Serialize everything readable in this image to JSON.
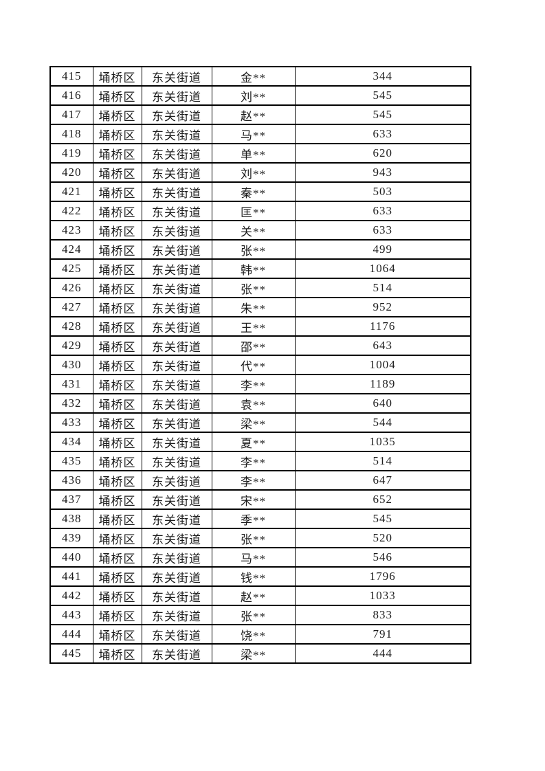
{
  "colors": {
    "background": "#ffffff",
    "border": "#000000",
    "text": "#1c1c1c"
  },
  "table": {
    "rows": [
      {
        "index": "415",
        "district": "埇桥区",
        "street": "东关街道",
        "name": "金**",
        "value": "344"
      },
      {
        "index": "416",
        "district": "埇桥区",
        "street": "东关街道",
        "name": "刘**",
        "value": "545"
      },
      {
        "index": "417",
        "district": "埇桥区",
        "street": "东关街道",
        "name": "赵**",
        "value": "545"
      },
      {
        "index": "418",
        "district": "埇桥区",
        "street": "东关街道",
        "name": "马**",
        "value": "633"
      },
      {
        "index": "419",
        "district": "埇桥区",
        "street": "东关街道",
        "name": "单**",
        "value": "620"
      },
      {
        "index": "420",
        "district": "埇桥区",
        "street": "东关街道",
        "name": "刘**",
        "value": "943"
      },
      {
        "index": "421",
        "district": "埇桥区",
        "street": "东关街道",
        "name": "秦**",
        "value": "503"
      },
      {
        "index": "422",
        "district": "埇桥区",
        "street": "东关街道",
        "name": "匡**",
        "value": "633"
      },
      {
        "index": "423",
        "district": "埇桥区",
        "street": "东关街道",
        "name": "关**",
        "value": "633"
      },
      {
        "index": "424",
        "district": "埇桥区",
        "street": "东关街道",
        "name": "张**",
        "value": "499"
      },
      {
        "index": "425",
        "district": "埇桥区",
        "street": "东关街道",
        "name": "韩**",
        "value": "1064"
      },
      {
        "index": "426",
        "district": "埇桥区",
        "street": "东关街道",
        "name": "张**",
        "value": "514"
      },
      {
        "index": "427",
        "district": "埇桥区",
        "street": "东关街道",
        "name": "朱**",
        "value": "952"
      },
      {
        "index": "428",
        "district": "埇桥区",
        "street": "东关街道",
        "name": "王**",
        "value": "1176"
      },
      {
        "index": "429",
        "district": "埇桥区",
        "street": "东关街道",
        "name": "邵**",
        "value": "643"
      },
      {
        "index": "430",
        "district": "埇桥区",
        "street": "东关街道",
        "name": "代**",
        "value": "1004"
      },
      {
        "index": "431",
        "district": "埇桥区",
        "street": "东关街道",
        "name": "李**",
        "value": "1189"
      },
      {
        "index": "432",
        "district": "埇桥区",
        "street": "东关街道",
        "name": "袁**",
        "value": "640"
      },
      {
        "index": "433",
        "district": "埇桥区",
        "street": "东关街道",
        "name": "梁**",
        "value": "544"
      },
      {
        "index": "434",
        "district": "埇桥区",
        "street": "东关街道",
        "name": "夏**",
        "value": "1035"
      },
      {
        "index": "435",
        "district": "埇桥区",
        "street": "东关街道",
        "name": "李**",
        "value": "514"
      },
      {
        "index": "436",
        "district": "埇桥区",
        "street": "东关街道",
        "name": "李**",
        "value": "647"
      },
      {
        "index": "437",
        "district": "埇桥区",
        "street": "东关街道",
        "name": "宋**",
        "value": "652"
      },
      {
        "index": "438",
        "district": "埇桥区",
        "street": "东关街道",
        "name": "季**",
        "value": "545"
      },
      {
        "index": "439",
        "district": "埇桥区",
        "street": "东关街道",
        "name": "张**",
        "value": "520"
      },
      {
        "index": "440",
        "district": "埇桥区",
        "street": "东关街道",
        "name": "马**",
        "value": "546"
      },
      {
        "index": "441",
        "district": "埇桥区",
        "street": "东关街道",
        "name": "钱**",
        "value": "1796"
      },
      {
        "index": "442",
        "district": "埇桥区",
        "street": "东关街道",
        "name": "赵**",
        "value": "1033"
      },
      {
        "index": "443",
        "district": "埇桥区",
        "street": "东关街道",
        "name": "张**",
        "value": "833"
      },
      {
        "index": "444",
        "district": "埇桥区",
        "street": "东关街道",
        "name": "饶**",
        "value": "791"
      },
      {
        "index": "445",
        "district": "埇桥区",
        "street": "东关街道",
        "name": "梁**",
        "value": "444"
      }
    ]
  }
}
